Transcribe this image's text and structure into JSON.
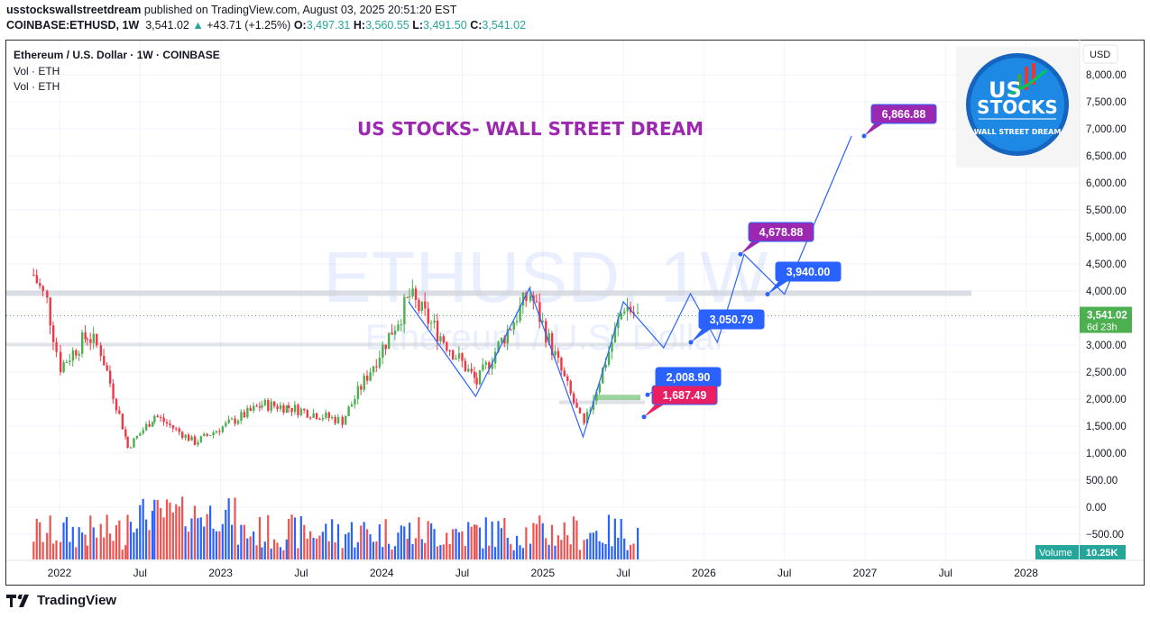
{
  "header": {
    "publisher": "usstockswallstreetdream",
    "published_text": " published on TradingView.com, August 03, 2025 20:51:20 EST",
    "symbol": "COINBASE:ETHUSD, 1W",
    "last": "3,541.02",
    "change": "+43.71 (+1.25%)",
    "o_label": "O:",
    "o": "3,497.31",
    "h_label": "H:",
    "h": "3,560.55",
    "l_label": "L:",
    "l": "3,491.50",
    "c_label": "C:",
    "c": "3,541.02"
  },
  "legend": {
    "title": "Ethereum / U.S. Dollar · 1W · COINBASE",
    "vol1": "Vol · ETH",
    "vol2": "Vol · ETH"
  },
  "watermark": {
    "line1": "ETHUSD, 1W",
    "line2": "Ethereum / U.S. Dollar"
  },
  "banner": "US STOCKS- WALL STREET DREAM",
  "logo": {
    "line1": "US",
    "line2": "STOCKS",
    "line3": "WALL STREET DREAM"
  },
  "price_axis": {
    "currency": "USD",
    "ticks": [
      "8,000.00",
      "7,500.00",
      "7,000.00",
      "6,500.00",
      "6,000.00",
      "5,500.00",
      "5,000.00",
      "4,500.00",
      "4,000.00",
      "3,000.00",
      "2,500.00",
      "2,000.00",
      "1,500.00",
      "1,000.00",
      "500.00",
      "0.00",
      "−500.00"
    ],
    "current_price": "3,541.02",
    "countdown": "6d 23h"
  },
  "time_axis": {
    "ticks": [
      "2022",
      "Jul",
      "2023",
      "Jul",
      "2024",
      "Jul",
      "2025",
      "Jul",
      "2026",
      "Jul",
      "2027",
      "Jul",
      "2028"
    ]
  },
  "volume_badge": {
    "label": "Volume",
    "value": "10.25K"
  },
  "annotations": [
    {
      "label": "6,866.88",
      "color": "#9c27b0"
    },
    {
      "label": "4,678.88",
      "color": "#9c27b0"
    },
    {
      "label": "3,940.00",
      "color": "#2962ff"
    },
    {
      "label": "3,050.79",
      "color": "#2962ff"
    },
    {
      "label": "2,008.90",
      "color": "#2962ff"
    },
    {
      "label": "1,687.49",
      "color": "#e91e63"
    }
  ],
  "footer": {
    "brand": "TradingView"
  },
  "colors": {
    "up": "#4caf50",
    "down": "#f23645",
    "vol_up": "#2962ff",
    "vol_down": "#ef5350",
    "projection": "#2962ff",
    "banner": "#9c27b0",
    "price_tag": "#4caf50",
    "volume_tag": "#26a69a"
  },
  "chart_data": {
    "type": "candlestick",
    "title": "Ethereum / U.S. Dollar · 1W · COINBASE",
    "ylabel": "USD",
    "ylim": [
      -500,
      8000
    ],
    "x_ticks": [
      "2022",
      "Jul",
      "2023",
      "Jul",
      "2024",
      "Jul",
      "2025",
      "Jul",
      "2026",
      "Jul",
      "2027",
      "Jul",
      "2028"
    ],
    "last_price": 3541.02,
    "ohlc_last": {
      "open": 3497.31,
      "high": 3560.55,
      "low": 3491.5,
      "close": 3541.02,
      "change": 43.71,
      "change_pct": 1.25
    },
    "approx_weekly_close_path": [
      {
        "date": "2021-11",
        "price": 4300
      },
      {
        "date": "2021-12",
        "price": 3800
      },
      {
        "date": "2022-01",
        "price": 2600
      },
      {
        "date": "2022-03",
        "price": 3200
      },
      {
        "date": "2022-04",
        "price": 2900
      },
      {
        "date": "2022-06",
        "price": 1100
      },
      {
        "date": "2022-08",
        "price": 1700
      },
      {
        "date": "2022-11",
        "price": 1200
      },
      {
        "date": "2023-04",
        "price": 1900
      },
      {
        "date": "2023-06",
        "price": 1850
      },
      {
        "date": "2023-10",
        "price": 1600
      },
      {
        "date": "2024-03",
        "price": 3900
      },
      {
        "date": "2024-08",
        "price": 2300
      },
      {
        "date": "2024-12",
        "price": 3950
      },
      {
        "date": "2025-04",
        "price": 1500
      },
      {
        "date": "2025-07",
        "price": 3750
      },
      {
        "date": "2025-08",
        "price": 3541
      }
    ],
    "projection_path": [
      {
        "date": "2024-03",
        "price": 3800
      },
      {
        "date": "2024-08",
        "price": 2050
      },
      {
        "date": "2024-12",
        "price": 4050
      },
      {
        "date": "2025-04",
        "price": 1300
      },
      {
        "date": "2025-07",
        "price": 3800
      },
      {
        "date": "2025-10",
        "price": 2950
      },
      {
        "date": "2025-12",
        "price": 3950
      },
      {
        "date": "2026-02",
        "price": 3050
      },
      {
        "date": "2026-04",
        "price": 4678.88
      },
      {
        "date": "2026-07",
        "price": 3940
      },
      {
        "date": "2026-12",
        "price": 6866.88
      }
    ],
    "annotations": [
      6866.88,
      4678.88,
      3940.0,
      3050.79,
      2008.9,
      1687.49
    ],
    "horizontal_zones": [
      {
        "price": 3940,
        "color": "#d1d4dc"
      },
      {
        "price": 3000,
        "color": "#d1d4dc"
      },
      {
        "price": 2000,
        "color": "#4caf50"
      },
      {
        "price": 1950,
        "color": "#d1d4dc"
      }
    ],
    "volume_last": "10.25K"
  }
}
